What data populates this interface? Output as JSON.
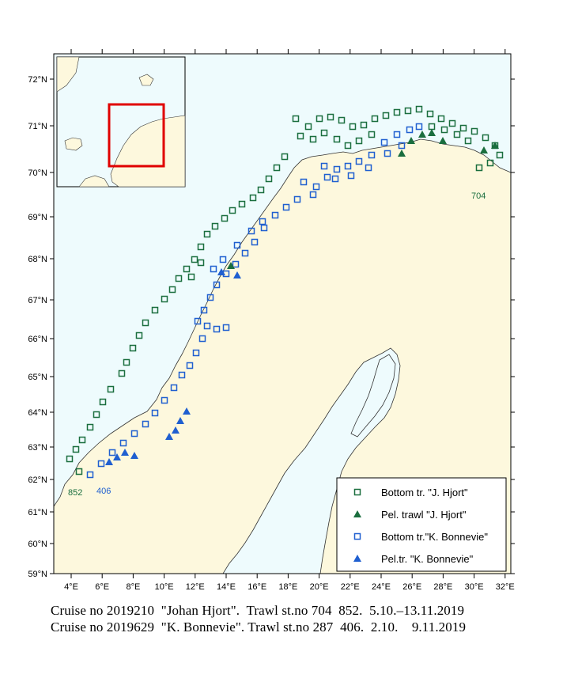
{
  "lat_labels": [
    "72°N",
    "71°N",
    "70°N",
    "69°N",
    "68°N",
    "67°N",
    "66°N",
    "65°N",
    "64°N",
    "63°N",
    "62°N",
    "61°N",
    "60°N",
    "59°N"
  ],
  "lon_labels": [
    "4°E",
    "6°E",
    "8°E",
    "10°E",
    "12°E",
    "14°E",
    "16°E",
    "18°E",
    "20°E",
    "22°E",
    "24°E",
    "26°E",
    "28°E",
    "30°E",
    "32°E"
  ],
  "station_labels": {
    "north_east": "704",
    "south_west_a": "852",
    "south_west_b": "406"
  },
  "legend": [
    {
      "label": "Bottom tr. \"J. Hjort\"",
      "symbol": "open-square",
      "color": "#1a6e3e"
    },
    {
      "label": "Pel. trawl \"J. Hjort\"",
      "symbol": "filled-triangle",
      "color": "#1a6e3e"
    },
    {
      "label": "Bottom tr.\"K. Bonnevie\"",
      "symbol": "open-square",
      "color": "#1f5fd0"
    },
    {
      "label": "Pel.tr. \"K. Bonnevie\"",
      "symbol": "filled-triangle",
      "color": "#1f5fd0"
    }
  ],
  "caption": {
    "line1": "Cruise no 2019210  \"Johan Hjort\".  Trawl st.no 704  852.  5.10.–13.11.2019",
    "line2": "Cruise no 2019629  \"K. Bonnevie\". Trawl st.no 287  406.  2.10.    9.11.2019"
  },
  "colors": {
    "sea": "#eefbfd",
    "land": "#fdf8dd",
    "hjort": "#1a6e3e",
    "bonnevie": "#1f5fd0",
    "inset_box": "#e00000"
  }
}
